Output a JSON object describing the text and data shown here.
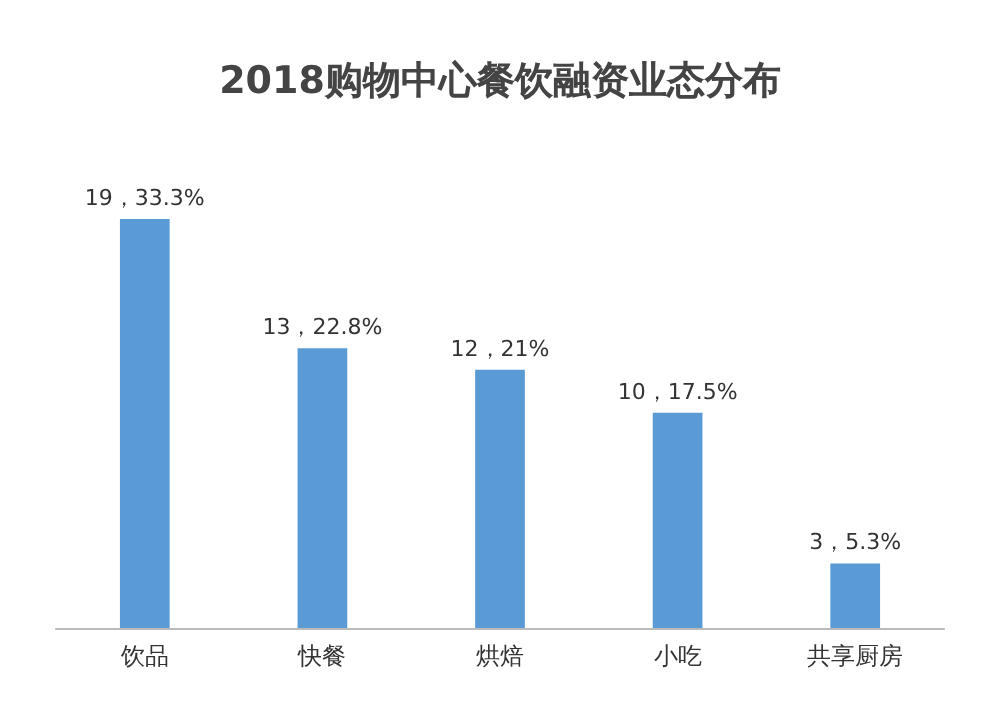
{
  "chart_data": {
    "type": "bar",
    "title": "2018购物中心餐饮融资业态分布",
    "categories": [
      "饮品",
      "快餐",
      "烘焙",
      "小吃",
      "共享厨房"
    ],
    "values": [
      19,
      13,
      12,
      10,
      3
    ],
    "value_labels": [
      "19，33.3%",
      "13，22.8%",
      "12，21%",
      "10，17.5%",
      "3，5.3%"
    ],
    "color": "#5b9bd5",
    "grid": false
  }
}
